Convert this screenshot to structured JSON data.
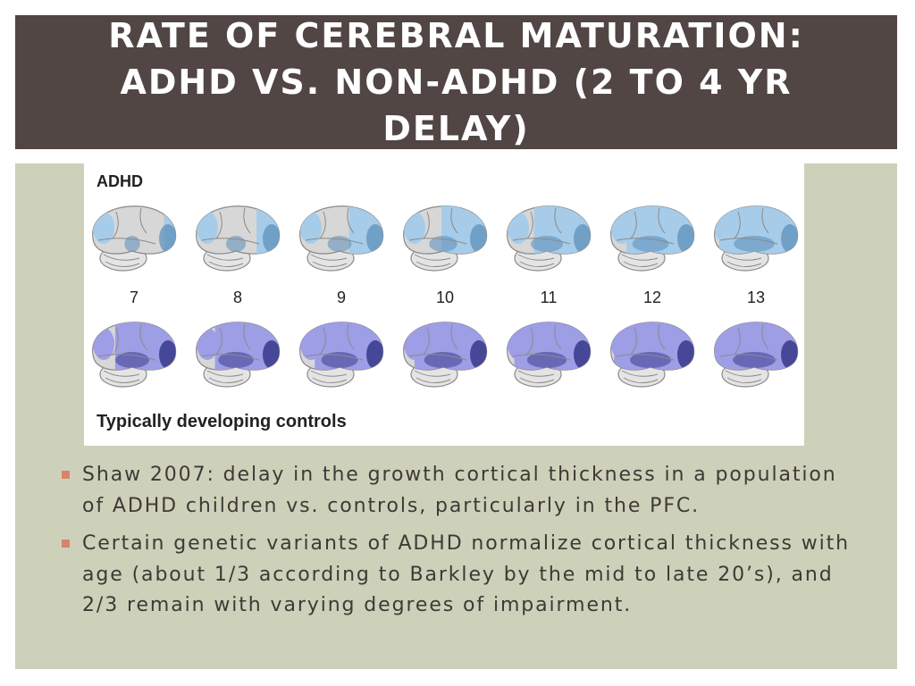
{
  "slide": {
    "title": "Rate of cerebral maturation: ADHD vs. Non-ADHD (2 to 4 yr delay)"
  },
  "figure": {
    "top_label": "ADHD",
    "bottom_label": "Typically developing controls",
    "ages": [
      "7",
      "8",
      "9",
      "10",
      "11",
      "12",
      "13"
    ],
    "colors": {
      "adhd_fill": "#a6cce9",
      "adhd_dark": "#5b8db8",
      "control_fill": "#9e9ee6",
      "control_dark": "#3d3d8f",
      "brain_gray": "#d7d7d7",
      "brain_outline": "#8a8a8a"
    }
  },
  "bullets": [
    {
      "text": "Shaw 2007: delay in the growth cortical thickness in a population of ADHD children vs. controls, particularly in the PFC."
    },
    {
      "text": "Certain genetic variants of ADHD normalize cortical thickness with age (about 1/3 according to Barkley by the mid to late 20’s), and 2/3 remain with varying degrees of impairment."
    }
  ],
  "colors": {
    "title_bg": "#514644",
    "panel_bg": "#cdd1b9",
    "bullet_marker": "#d9846a",
    "text": "#3f3936"
  }
}
